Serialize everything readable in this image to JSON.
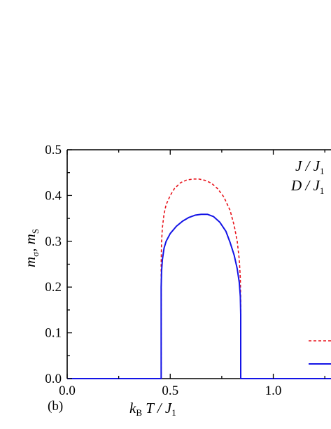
{
  "chart_data": {
    "type": "line",
    "panel_label": "(b)",
    "xlabel": {
      "k": "k",
      "k_sub": "B",
      "rest": " T / J",
      "rest_sub": "1"
    },
    "ylabel": {
      "a": "m",
      "a_sub": "σ",
      "sep": ", ",
      "b": "m",
      "b_sub": "S"
    },
    "xlim": [
      0.0,
      1.28
    ],
    "ylim": [
      0.0,
      0.5
    ],
    "x_ticks": [
      {
        "value": 0.0,
        "label": "0.0"
      },
      {
        "value": 0.5,
        "label": "0.5"
      },
      {
        "value": 1.0,
        "label": "1.0"
      }
    ],
    "y_ticks": [
      {
        "value": 0.0,
        "label": "0.0"
      },
      {
        "value": 0.1,
        "label": "0.1"
      },
      {
        "value": 0.2,
        "label": "0.2"
      },
      {
        "value": 0.3,
        "label": "0.3"
      },
      {
        "value": 0.4,
        "label": "0.4"
      },
      {
        "value": 0.5,
        "label": "0.5"
      }
    ],
    "annotations": [
      {
        "text": "J / J",
        "sub": "1"
      },
      {
        "text": "D / J",
        "sub": "1"
      }
    ],
    "series": [
      {
        "color": "#e8141c",
        "style": "dashed",
        "x": [
          0.0,
          0.456,
          0.456,
          0.458,
          0.462,
          0.47,
          0.48,
          0.5,
          0.52,
          0.55,
          0.58,
          0.61,
          0.64,
          0.67,
          0.7,
          0.73,
          0.76,
          0.79,
          0.81,
          0.825,
          0.835,
          0.84,
          0.842,
          0.842,
          1.28
        ],
        "y": [
          0.0,
          0.0,
          0.25,
          0.3,
          0.33,
          0.36,
          0.38,
          0.4,
          0.415,
          0.428,
          0.434,
          0.436,
          0.436,
          0.433,
          0.427,
          0.415,
          0.397,
          0.368,
          0.335,
          0.3,
          0.26,
          0.22,
          0.17,
          0.0,
          0.0
        ]
      },
      {
        "color": "#1414e6",
        "style": "solid",
        "x": [
          0.0,
          0.456,
          0.456,
          0.458,
          0.462,
          0.47,
          0.48,
          0.5,
          0.53,
          0.56,
          0.59,
          0.62,
          0.65,
          0.68,
          0.71,
          0.74,
          0.77,
          0.79,
          0.81,
          0.825,
          0.835,
          0.84,
          0.842,
          0.842,
          1.28
        ],
        "y": [
          0.0,
          0.0,
          0.2,
          0.235,
          0.26,
          0.285,
          0.3,
          0.317,
          0.333,
          0.344,
          0.352,
          0.357,
          0.359,
          0.359,
          0.354,
          0.342,
          0.322,
          0.298,
          0.27,
          0.24,
          0.21,
          0.18,
          0.14,
          0.0,
          0.0
        ]
      }
    ]
  }
}
